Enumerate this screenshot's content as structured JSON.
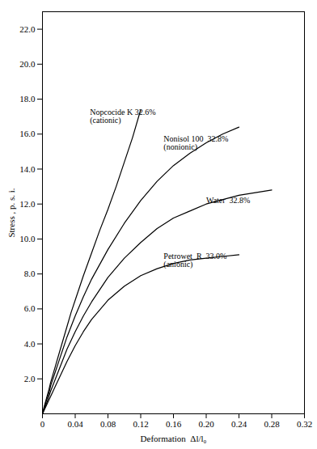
{
  "chart_data": {
    "type": "line",
    "xlabel": "Deformation  Δl/l₀",
    "ylabel": "Stress , p. s. i.",
    "xlim": [
      0,
      0.32
    ],
    "ylim": [
      0,
      23
    ],
    "xticks": [
      0,
      0.04,
      0.08,
      0.12,
      0.16,
      {
        "value": 0.2,
        "label": "0.20"
      },
      0.24,
      0.28,
      0.32
    ],
    "yticks": [
      {
        "value": 2,
        "label": "2.0"
      },
      {
        "value": 4,
        "label": "4.0"
      },
      {
        "value": 6,
        "label": "6.0"
      },
      {
        "value": 8,
        "label": "8.0"
      },
      {
        "value": 10,
        "label": "10.0"
      },
      {
        "value": 12,
        "label": "12.0"
      },
      {
        "value": 14,
        "label": "14.0"
      },
      {
        "value": 16,
        "label": "16.0"
      },
      {
        "value": 18,
        "label": "18.0"
      },
      {
        "value": 20,
        "label": "20.0"
      },
      {
        "value": 22,
        "label": "22.0"
      }
    ],
    "grid": false,
    "series": [
      {
        "color": "#000000",
        "x": [
          0.0,
          0.002,
          0.005,
          0.008,
          0.01,
          0.015,
          0.02,
          0.025,
          0.03,
          0.035,
          0.04,
          0.05,
          0.06,
          0.07,
          0.08,
          0.09,
          0.1,
          0.11,
          0.12
        ],
        "values": [
          0.0,
          0.4,
          0.9,
          1.4,
          1.8,
          2.6,
          3.4,
          4.2,
          5.0,
          5.8,
          6.5,
          7.9,
          9.2,
          10.5,
          11.7,
          13.0,
          14.4,
          15.8,
          17.4
        ]
      },
      {
        "color": "#000000",
        "x": [
          0.0,
          0.002,
          0.005,
          0.008,
          0.01,
          0.015,
          0.02,
          0.025,
          0.03,
          0.04,
          0.05,
          0.06,
          0.08,
          0.1,
          0.12,
          0.14,
          0.16,
          0.18,
          0.2,
          0.22,
          0.24
        ],
        "values": [
          0.0,
          0.3,
          0.8,
          1.2,
          1.6,
          2.3,
          3.0,
          3.7,
          4.4,
          5.6,
          6.7,
          7.7,
          9.4,
          10.9,
          12.2,
          13.3,
          14.2,
          14.9,
          15.5,
          16.0,
          16.4
        ]
      },
      {
        "color": "#000000",
        "x": [
          0.0,
          0.002,
          0.005,
          0.008,
          0.01,
          0.015,
          0.02,
          0.025,
          0.03,
          0.04,
          0.05,
          0.06,
          0.08,
          0.1,
          0.12,
          0.14,
          0.16,
          0.18,
          0.2,
          0.24,
          0.28
        ],
        "values": [
          0.0,
          0.25,
          0.6,
          1.0,
          1.3,
          1.9,
          2.5,
          3.1,
          3.7,
          4.7,
          5.6,
          6.4,
          7.8,
          8.9,
          9.8,
          10.6,
          11.2,
          11.6,
          12.0,
          12.5,
          12.8
        ]
      },
      {
        "color": "#000000",
        "x": [
          0.0,
          0.002,
          0.005,
          0.008,
          0.01,
          0.015,
          0.02,
          0.025,
          0.03,
          0.04,
          0.05,
          0.06,
          0.08,
          0.1,
          0.12,
          0.14,
          0.16,
          0.18,
          0.2,
          0.22,
          0.24
        ],
        "values": [
          0.0,
          0.2,
          0.5,
          0.8,
          1.0,
          1.5,
          2.0,
          2.5,
          3.0,
          3.9,
          4.7,
          5.4,
          6.5,
          7.3,
          7.9,
          8.3,
          8.6,
          8.8,
          8.9,
          9.0,
          9.1
        ]
      }
    ],
    "annotations": [
      {
        "text": "Nopcocide K 32.6%\n(cationic)",
        "x": 0.058,
        "y": 17.0
      },
      {
        "text": "Nonisol 100  32.8%\n(nonionic)",
        "x": 0.148,
        "y": 15.5
      },
      {
        "text": "Water  32.8%",
        "x": 0.2,
        "y": 12.2
      },
      {
        "text": "Petrowet  R  33.0%\n(anionic)",
        "x": 0.148,
        "y": 8.8
      }
    ]
  }
}
